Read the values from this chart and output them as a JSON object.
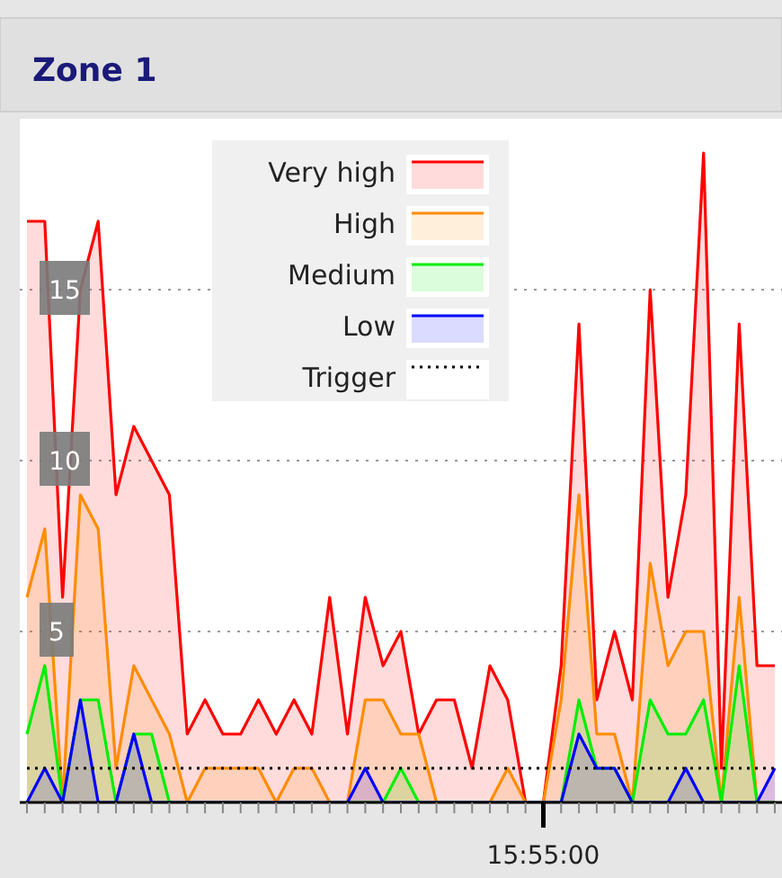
{
  "chart_data": {
    "type": "area",
    "title": "Zone 1",
    "categories": [
      null,
      null,
      null,
      null,
      null,
      null,
      null,
      null,
      null,
      null,
      null,
      null,
      null,
      null,
      null,
      null,
      null,
      null,
      null,
      null,
      null,
      null,
      null,
      null,
      null,
      null,
      null,
      null,
      null,
      "15:55:00",
      null,
      null,
      null,
      null,
      null,
      null,
      null,
      null,
      null,
      null,
      null,
      null,
      null
    ],
    "series": [
      {
        "name": "Very high",
        "color": "#ff0000",
        "values": [
          17,
          17,
          6,
          15,
          17,
          9,
          11,
          10,
          9,
          2,
          3,
          2,
          2,
          3,
          2,
          3,
          2,
          6,
          2,
          6,
          4,
          5,
          2,
          3,
          3,
          1,
          4,
          3,
          0,
          0,
          4,
          14,
          3,
          5,
          3,
          15,
          6,
          9,
          19,
          1,
          14,
          4,
          4
        ]
      },
      {
        "name": "High",
        "color": "#ff8c00",
        "values": [
          6,
          8,
          0,
          9,
          8,
          1,
          4,
          3,
          2,
          0,
          1,
          1,
          1,
          1,
          0,
          1,
          1,
          0,
          0,
          3,
          3,
          2,
          2,
          0,
          0,
          0,
          0,
          1,
          0,
          0,
          3,
          9,
          2,
          2,
          0,
          7,
          4,
          5,
          5,
          0,
          6,
          0,
          0
        ]
      },
      {
        "name": "Medium",
        "color": "#00ee00",
        "values": [
          2,
          4,
          0,
          3,
          3,
          0,
          2,
          2,
          0,
          0,
          0,
          0,
          0,
          0,
          0,
          0,
          0,
          0,
          0,
          0,
          0,
          1,
          0,
          0,
          0,
          0,
          0,
          0,
          0,
          0,
          0,
          3,
          1,
          1,
          0,
          3,
          2,
          2,
          3,
          0,
          4,
          0,
          0
        ]
      },
      {
        "name": "Low",
        "color": "#0000ff",
        "values": [
          0,
          1,
          0,
          3,
          0,
          0,
          2,
          0,
          0,
          0,
          0,
          0,
          0,
          0,
          0,
          0,
          0,
          0,
          0,
          1,
          0,
          0,
          0,
          0,
          0,
          0,
          0,
          0,
          0,
          0,
          0,
          2,
          1,
          1,
          0,
          0,
          0,
          1,
          0,
          0,
          0,
          0,
          1
        ]
      },
      {
        "name": "Trigger",
        "type": "line",
        "line_style": "dotted",
        "color": "#000000",
        "values": [
          1,
          1,
          1,
          1,
          1,
          1,
          1,
          1,
          1,
          1,
          1,
          1,
          1,
          1,
          1,
          1,
          1,
          1,
          1,
          1,
          1,
          1,
          1,
          1,
          1,
          1,
          1,
          1,
          1,
          1,
          1,
          1,
          1,
          1,
          1,
          1,
          1,
          1,
          1,
          1,
          1,
          1,
          1
        ]
      }
    ],
    "ylim": [
      0,
      20
    ],
    "yticks": [
      5,
      10,
      15
    ],
    "grid": "y",
    "legend": "top"
  }
}
